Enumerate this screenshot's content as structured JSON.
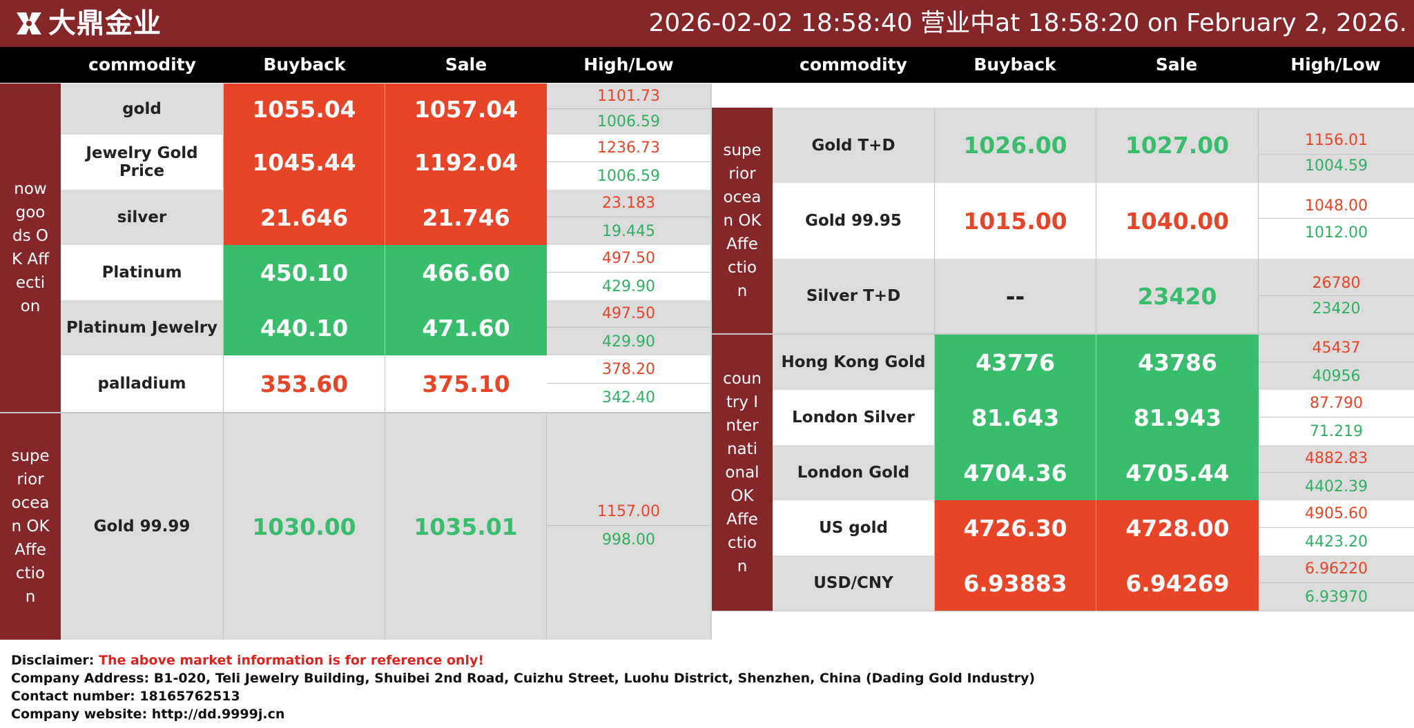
{
  "header": {
    "logo_text": "大鼎金业",
    "datetime": "2026-02-02 18:58:40 营业中at 18:58:20 on February 2, 2026."
  },
  "columns": {
    "commodity": "commodity",
    "buyback": "Buyback",
    "sale": "Sale",
    "highlow": "High/Low"
  },
  "left": {
    "group1": {
      "label": "now goods OK Affection",
      "rows": [
        {
          "name": "gold",
          "buyback": "1055.04",
          "sale": "1057.04",
          "high": "1101.73",
          "low": "1006.59"
        },
        {
          "name": "Jewelry Gold Price",
          "buyback": "1045.44",
          "sale": "1192.04",
          "high": "1236.73",
          "low": "1006.59"
        },
        {
          "name": "silver",
          "buyback": "21.646",
          "sale": "21.746",
          "high": "23.183",
          "low": "19.445"
        },
        {
          "name": "Platinum",
          "buyback": "450.10",
          "sale": "466.60",
          "high": "497.50",
          "low": "429.90"
        },
        {
          "name": "Platinum Jewelry",
          "buyback": "440.10",
          "sale": "471.60",
          "high": "497.50",
          "low": "429.90"
        },
        {
          "name": "palladium",
          "buyback": "353.60",
          "sale": "375.10",
          "high": "378.20",
          "low": "342.40"
        }
      ]
    },
    "group2": {
      "label": "superior ocean OK Affection",
      "rows": [
        {
          "name": "Gold 99.99",
          "buyback": "1030.00",
          "sale": "1035.01",
          "high": "1157.00",
          "low": "998.00"
        }
      ]
    }
  },
  "right": {
    "group1": {
      "label": "superior ocean OK Affection",
      "rows": [
        {
          "name": "Gold T+D",
          "buyback": "1026.00",
          "sale": "1027.00",
          "high": "1156.01",
          "low": "1004.59"
        },
        {
          "name": "Gold 99.95",
          "buyback": "1015.00",
          "sale": "1040.00",
          "high": "1048.00",
          "low": "1012.00"
        },
        {
          "name": "Silver T+D",
          "buyback": "--",
          "sale": "23420",
          "high": "26780",
          "low": "23420"
        }
      ]
    },
    "group2": {
      "label": "country International OK Affection",
      "rows": [
        {
          "name": "Hong Kong Gold",
          "buyback": "43776",
          "sale": "43786",
          "high": "45437",
          "low": "40956"
        },
        {
          "name": "London Silver",
          "buyback": "81.643",
          "sale": "81.943",
          "high": "87.790",
          "low": "71.219"
        },
        {
          "name": "London Gold",
          "buyback": "4704.36",
          "sale": "4705.44",
          "high": "4882.83",
          "low": "4402.39"
        },
        {
          "name": "US gold",
          "buyback": "4726.30",
          "sale": "4728.00",
          "high": "4905.60",
          "low": "4423.20"
        },
        {
          "name": "USD/CNY",
          "buyback": "6.93883",
          "sale": "6.94269",
          "high": "6.96220",
          "low": "6.93970"
        }
      ]
    }
  },
  "footer": {
    "disclaimer_label": "Disclaimer: ",
    "disclaimer_text": "The above market information is for reference only!",
    "address": "Company Address: B1-020, Teli Jewelry Building, Shuibei 2nd Road, Cuizhu Street, Luohu District, Shenzhen, China (Dading Gold Industry)",
    "contact": "Contact number: 18165762513",
    "website": "Company website: http://dd.9999j.cn"
  },
  "colors": {
    "header_bg": "#852628",
    "up_red": "#e84427",
    "down_green": "#37bd6b",
    "row_gray": "#dcdcdc"
  }
}
